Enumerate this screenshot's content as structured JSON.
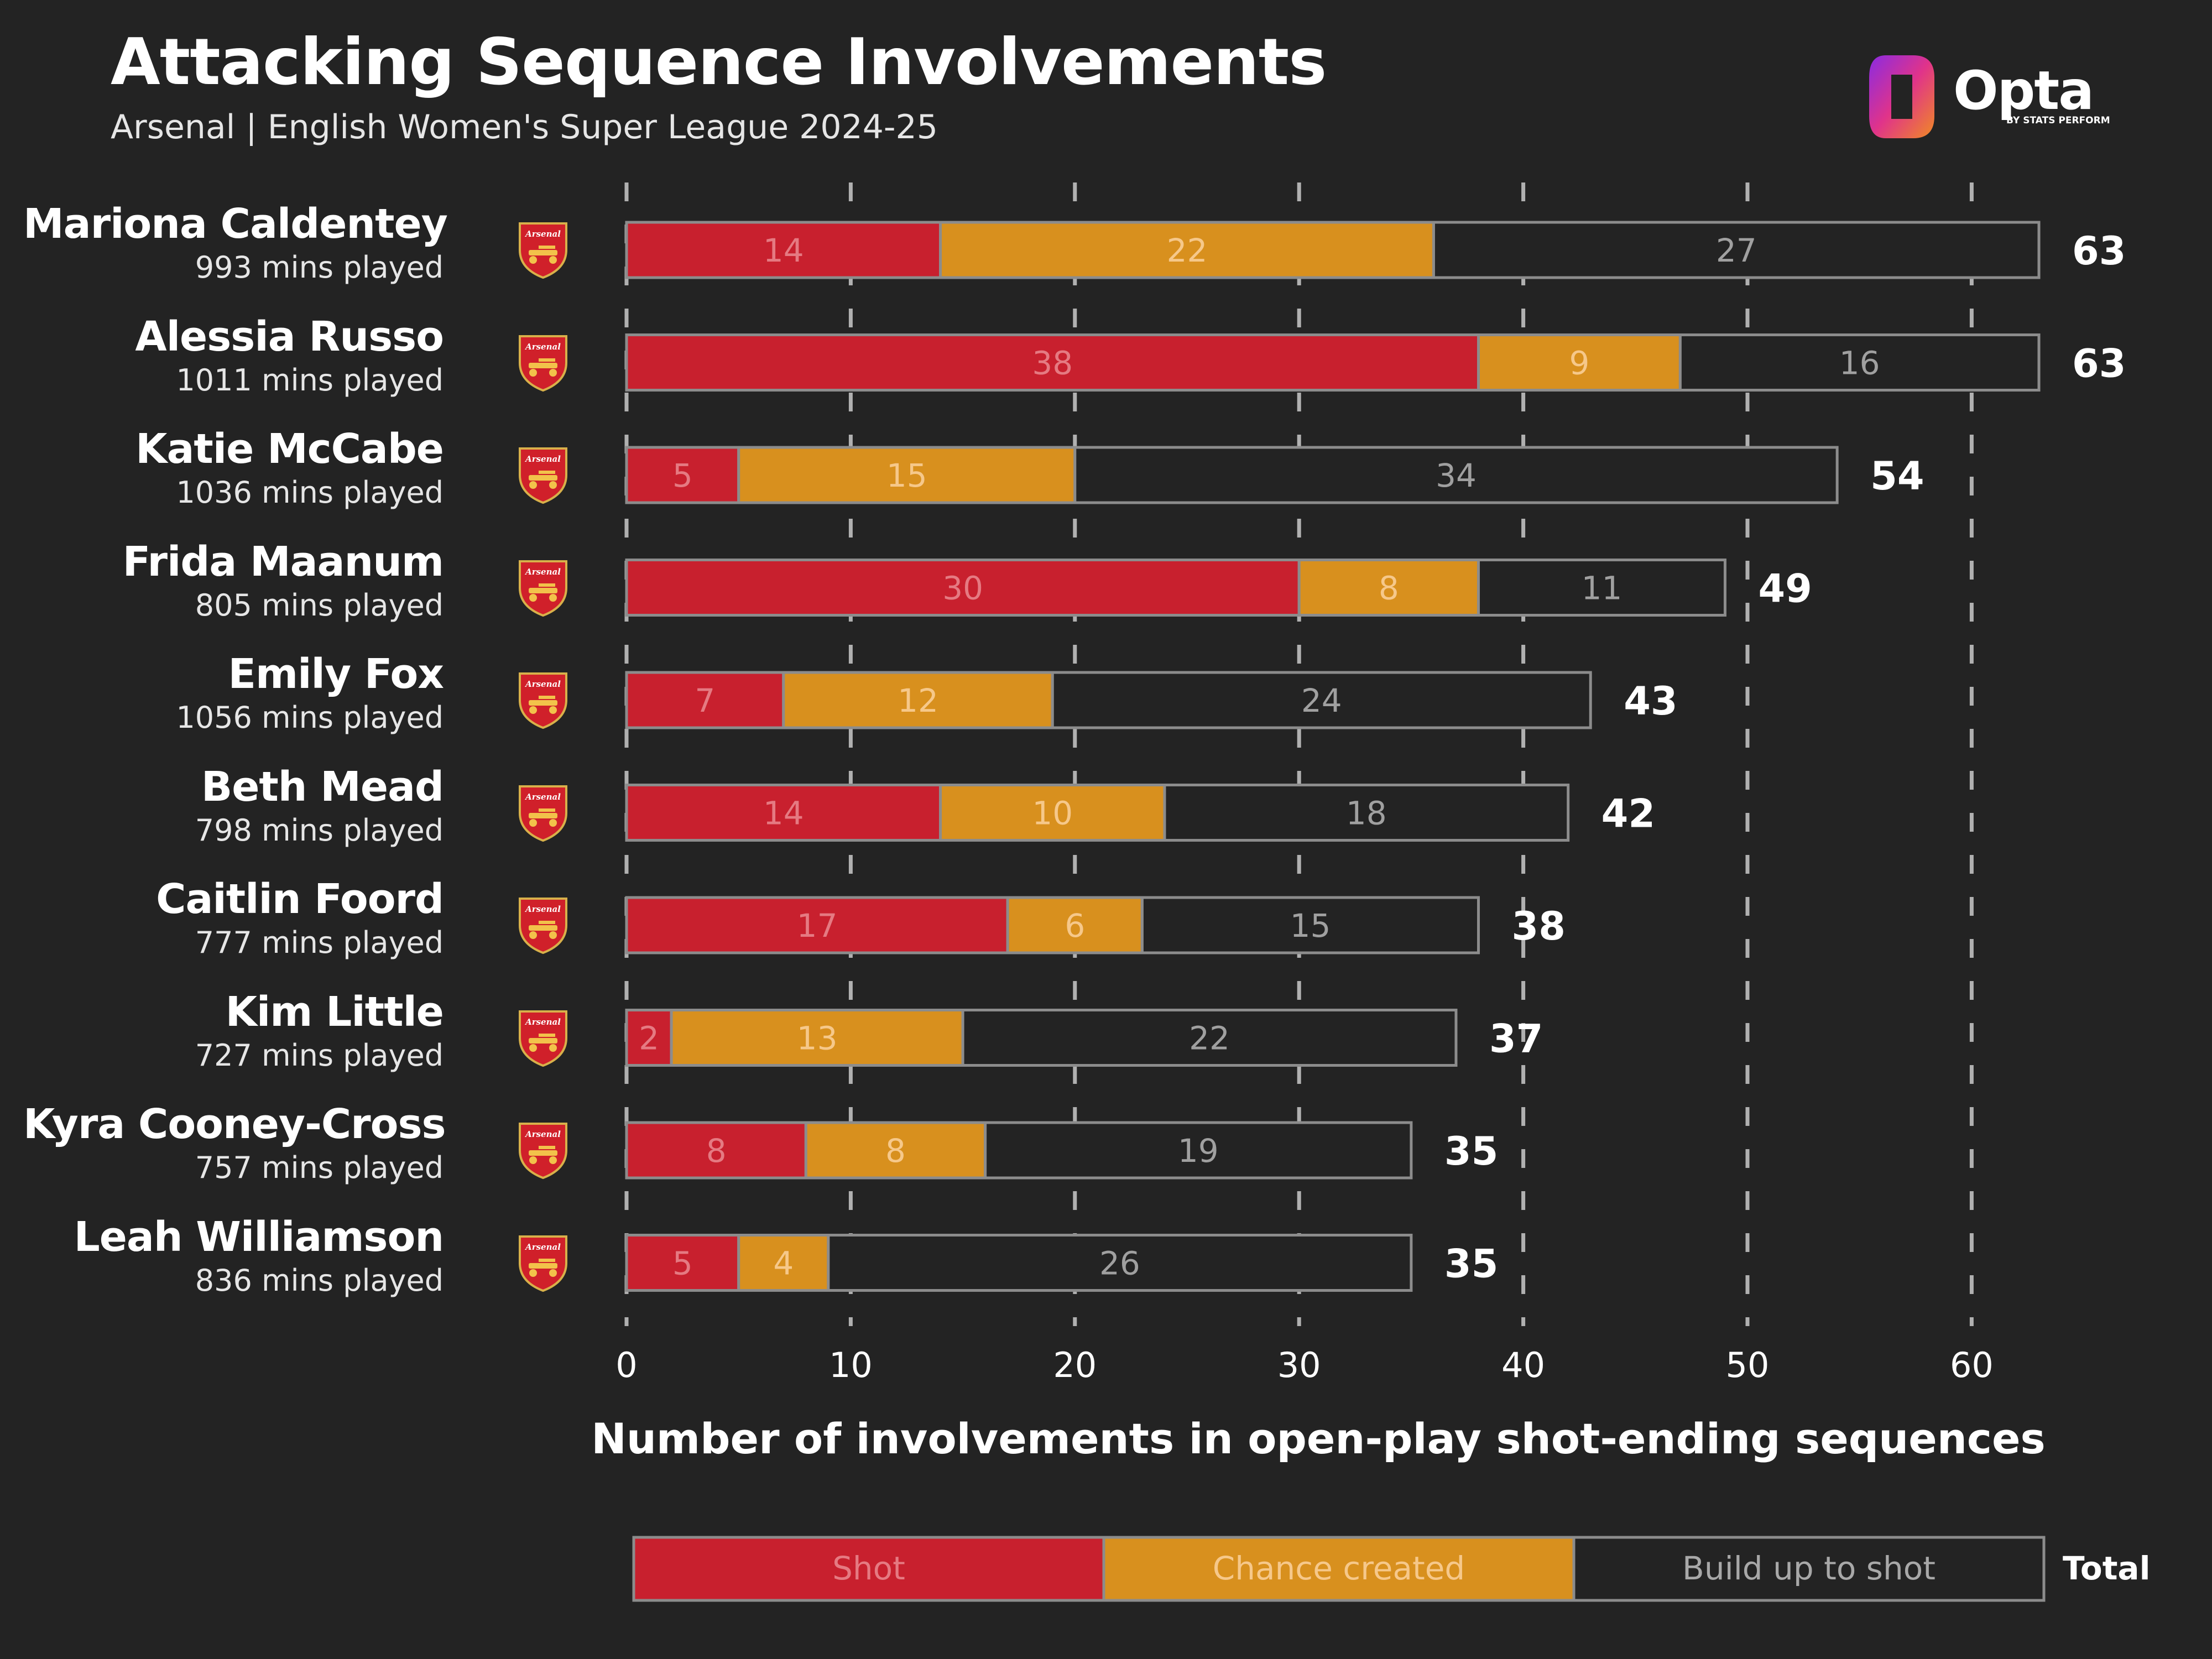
{
  "title": "Attacking Sequence Involvements",
  "subtitle": "Arsenal | English Women's Super League 2024-25",
  "logo": {
    "brand": "Opta",
    "byline": "BY STATS PERFORM"
  },
  "badge_text": "Arsenal",
  "players": [
    {
      "name": "Mariona Caldentey",
      "mins": "993 mins played"
    },
    {
      "name": "Alessia Russo",
      "mins": "1011 mins played"
    },
    {
      "name": "Katie McCabe",
      "mins": "1036 mins played"
    },
    {
      "name": "Frida Maanum",
      "mins": "805 mins played"
    },
    {
      "name": "Emily Fox",
      "mins": "1056 mins played"
    },
    {
      "name": "Beth Mead",
      "mins": "798 mins played"
    },
    {
      "name": "Caitlin Foord",
      "mins": "777 mins played"
    },
    {
      "name": "Kim Little",
      "mins": "727 mins played"
    },
    {
      "name": "Kyra Cooney-Cross",
      "mins": "757 mins played"
    },
    {
      "name": "Leah Williamson",
      "mins": "836 mins played"
    }
  ],
  "legend": {
    "shot": "Shot",
    "chance": "Chance created",
    "buildup": "Build up to shot",
    "total": "Total"
  },
  "colors": {
    "background": "#232323",
    "shot": "#c8202e",
    "chance": "#d8901e",
    "buildup": "#232323",
    "outline": "#8c8c8c",
    "grid": "#b0b0b0"
  },
  "chart_data": {
    "type": "bar",
    "orientation": "horizontal",
    "stacked": true,
    "title": "Attacking Sequence Involvements",
    "subtitle": "Arsenal | English Women's Super League 2024-25",
    "xlabel": "Number of involvements in open-play shot-ending sequences",
    "ylabel": "",
    "xlim": [
      0,
      60
    ],
    "xticks": [
      0,
      10,
      20,
      30,
      40,
      50,
      60
    ],
    "grid": "vertical dashed",
    "legend_position": "bottom",
    "categories": [
      "Mariona Caldentey",
      "Alessia Russo",
      "Katie McCabe",
      "Frida Maanum",
      "Emily Fox",
      "Beth Mead",
      "Caitlin Foord",
      "Kim Little",
      "Kyra Cooney-Cross",
      "Leah Williamson"
    ],
    "series": [
      {
        "name": "Shot",
        "values": [
          14,
          38,
          5,
          30,
          7,
          14,
          17,
          2,
          8,
          5
        ]
      },
      {
        "name": "Chance created",
        "values": [
          22,
          9,
          15,
          8,
          12,
          10,
          6,
          13,
          8,
          4
        ]
      },
      {
        "name": "Build up to shot",
        "values": [
          27,
          16,
          34,
          11,
          24,
          18,
          15,
          22,
          19,
          26
        ]
      }
    ],
    "totals": [
      63,
      63,
      54,
      49,
      43,
      42,
      38,
      37,
      35,
      35
    ]
  }
}
